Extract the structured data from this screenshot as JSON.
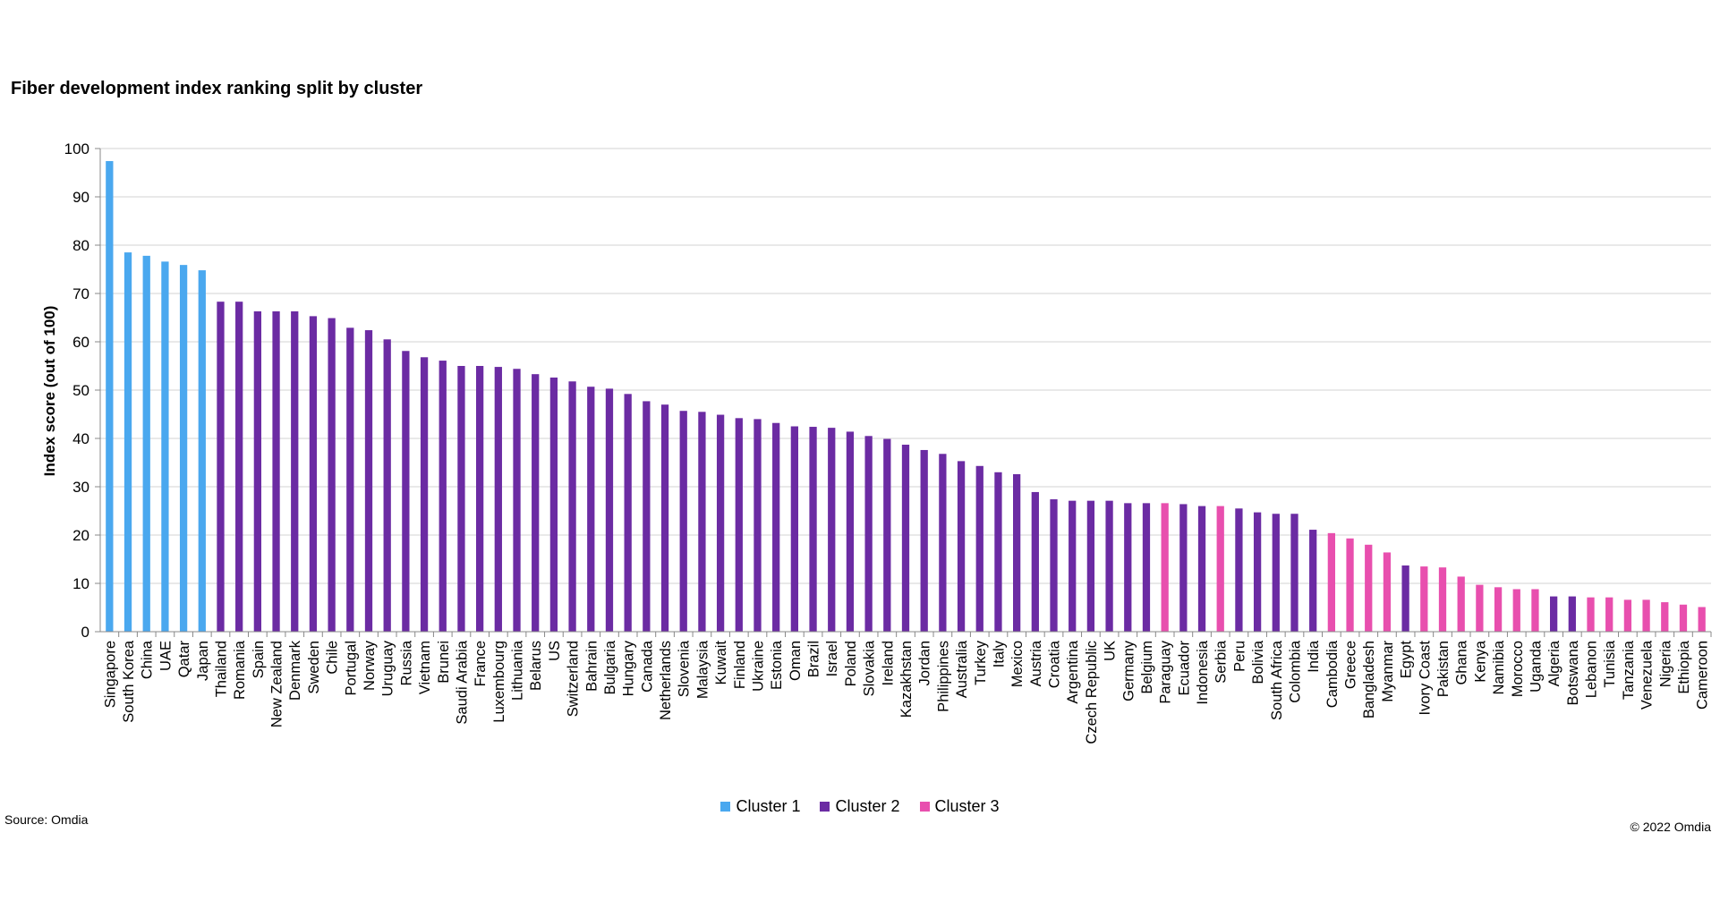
{
  "chart_data": {
    "type": "bar",
    "title": "Fiber development index ranking split by cluster",
    "ylabel": "Index score (out of 100)",
    "xlabel": "",
    "ylim": [
      0,
      100
    ],
    "yticks": [
      0,
      10,
      20,
      30,
      40,
      50,
      60,
      70,
      80,
      90,
      100
    ],
    "grid": true,
    "legend_placement": "bottom",
    "clusters": [
      {
        "name": "Cluster 1",
        "color": "#4aa8ef"
      },
      {
        "name": "Cluster 2",
        "color": "#6b2ba3"
      },
      {
        "name": "Cluster 3",
        "color": "#e84fae"
      }
    ],
    "categories": [
      "Singapore",
      "South Korea",
      "China",
      "UAE",
      "Qatar",
      "Japan",
      "Thailand",
      "Romania",
      "Spain",
      "New Zealand",
      "Denmark",
      "Sweden",
      "Chile",
      "Portugal",
      "Norway",
      "Uruguay",
      "Russia",
      "Vietnam",
      "Brunei",
      "Saudi Arabia",
      "France",
      "Luxembourg",
      "Lithuania",
      "Belarus",
      "US",
      "Switzerland",
      "Bahrain",
      "Bulgaria",
      "Hungary",
      "Canada",
      "Netherlands",
      "Slovenia",
      "Malaysia",
      "Kuwait",
      "Finland",
      "Ukraine",
      "Estonia",
      "Oman",
      "Brazil",
      "Israel",
      "Poland",
      "Slovakia",
      "Ireland",
      "Kazakhstan",
      "Jordan",
      "Philippines",
      "Australia",
      "Turkey",
      "Italy",
      "Mexico",
      "Austria",
      "Croatia",
      "Argentina",
      "Czech Republic",
      "UK",
      "Germany",
      "Belgium",
      "Paraguay",
      "Ecuador",
      "Indonesia",
      "Serbia",
      "Peru",
      "Bolivia",
      "South Africa",
      "Colombia",
      "India",
      "Cambodia",
      "Greece",
      "Bangladesh",
      "Myanmar",
      "Egypt",
      "Ivory Coast",
      "Pakistan",
      "Ghana",
      "Kenya",
      "Namibia",
      "Morocco",
      "Uganda",
      "Algeria",
      "Botswana",
      "Lebanon",
      "Tunisia",
      "Tanzania",
      "Venezuela",
      "Nigeria",
      "Ethiopia",
      "Cameroon"
    ],
    "values": [
      97.4,
      78.5,
      77.8,
      76.6,
      75.9,
      74.8,
      68.3,
      68.3,
      66.3,
      66.3,
      66.3,
      65.3,
      64.9,
      62.9,
      62.4,
      60.5,
      58.1,
      56.8,
      56.1,
      55.0,
      55.0,
      54.8,
      54.4,
      53.3,
      52.6,
      51.8,
      50.7,
      50.3,
      49.2,
      47.7,
      47.0,
      45.7,
      45.5,
      44.9,
      44.2,
      44.0,
      43.2,
      42.5,
      42.4,
      42.2,
      41.4,
      40.5,
      39.9,
      38.7,
      37.6,
      36.8,
      35.3,
      34.3,
      33.0,
      32.6,
      28.9,
      27.4,
      27.1,
      27.1,
      27.1,
      26.6,
      26.6,
      26.6,
      26.4,
      26.0,
      26.0,
      25.5,
      24.7,
      24.4,
      24.4,
      21.1,
      20.4,
      19.3,
      18.0,
      16.4,
      13.7,
      13.5,
      13.3,
      11.4,
      9.7,
      9.2,
      8.8,
      8.8,
      7.3,
      7.3,
      7.1,
      7.1,
      6.6,
      6.6,
      6.1,
      5.6,
      5.1
    ],
    "cluster": [
      1,
      1,
      1,
      1,
      1,
      1,
      2,
      2,
      2,
      2,
      2,
      2,
      2,
      2,
      2,
      2,
      2,
      2,
      2,
      2,
      2,
      2,
      2,
      2,
      2,
      2,
      2,
      2,
      2,
      2,
      2,
      2,
      2,
      2,
      2,
      2,
      2,
      2,
      2,
      2,
      2,
      2,
      2,
      2,
      2,
      2,
      2,
      2,
      2,
      2,
      2,
      2,
      2,
      2,
      2,
      2,
      2,
      3,
      2,
      2,
      3,
      2,
      2,
      2,
      2,
      2,
      3,
      3,
      3,
      3,
      2,
      3,
      3,
      3,
      3,
      3,
      3,
      3,
      2,
      2,
      3,
      3,
      3,
      3,
      3,
      3,
      3
    ]
  },
  "footer": {
    "source": "Source: Omdia",
    "copyright": "© 2022 Omdia"
  }
}
